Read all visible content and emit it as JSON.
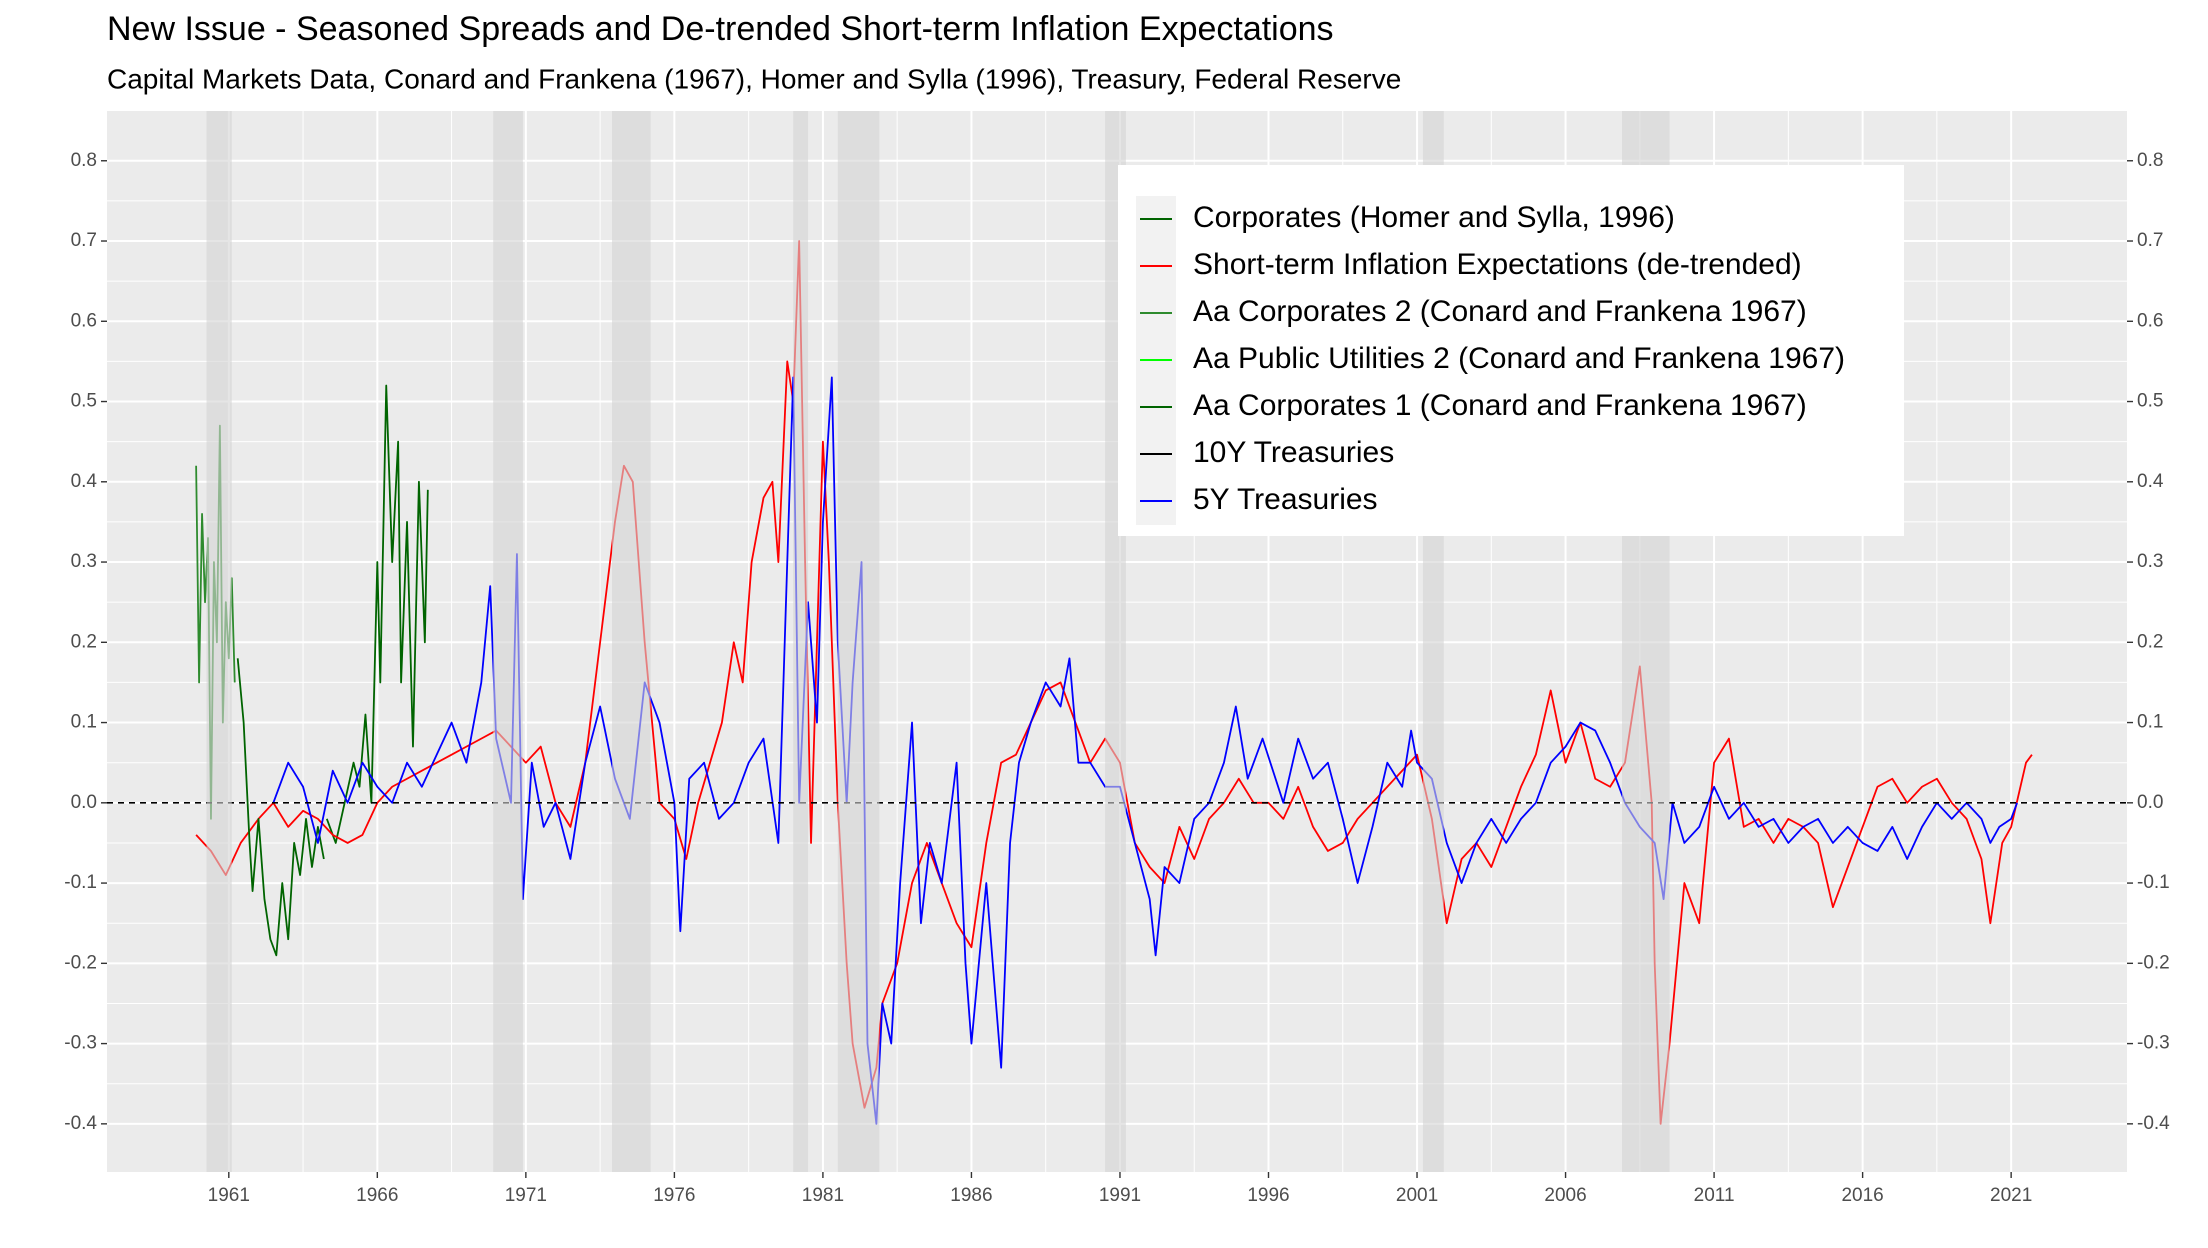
{
  "chart_data": {
    "type": "line",
    "title": "New Issue - Seasoned Spreads and De-trended Short-term Inflation Expectations",
    "subtitle": "Capital Markets Data, Conard and Frankena (1967), Homer and Sylla (1996), Treasury, Federal Reserve",
    "xlim": [
      1956.9,
      2024.9
    ],
    "xticks": [
      1961,
      1966,
      1971,
      1976,
      1981,
      1986,
      1991,
      1996,
      2001,
      2006,
      2011,
      2016,
      2021
    ],
    "ylim": [
      -0.46,
      0.862
    ],
    "yticks": [
      -0.4,
      -0.3,
      -0.2,
      -0.1,
      {
        "value": 0,
        "label": "0.0"
      },
      0.1,
      0.2,
      0.3,
      0.4,
      0.5,
      0.6,
      0.7,
      0.8
    ],
    "y2lim": [
      -0.46,
      0.862
    ],
    "y2ticks": [
      -0.4,
      -0.3,
      -0.2,
      -0.1,
      {
        "value": 0,
        "label": "0.0"
      },
      0.1,
      0.2,
      0.3,
      0.4,
      0.5,
      0.6,
      0.7,
      0.8
    ],
    "grid": true,
    "hline": 0,
    "shaded_periods": [
      [
        1960.25,
        1961.1
      ],
      [
        1969.9,
        1970.9
      ],
      [
        1973.9,
        1975.2
      ],
      [
        1980.0,
        1980.5
      ],
      [
        1981.5,
        1982.9
      ],
      [
        1990.5,
        1991.2
      ],
      [
        2001.2,
        2001.9
      ],
      [
        2007.9,
        2009.5
      ]
    ],
    "legend_position": "top-right",
    "series": [
      {
        "name": "Corporates (Homer and Sylla, 1996)",
        "color": "#006400",
        "x": [
          1964.3,
          1964.6,
          1964.9,
          1965.2,
          1965.4,
          1965.6,
          1965.8,
          1966.0,
          1966.1,
          1966.3,
          1966.5,
          1966.7,
          1966.8,
          1967.0,
          1967.2,
          1967.4,
          1967.6,
          1967.7
        ],
        "values": [
          -0.02,
          -0.05,
          0.0,
          0.05,
          0.02,
          0.11,
          0.0,
          0.3,
          0.15,
          0.52,
          0.3,
          0.45,
          0.15,
          0.35,
          0.07,
          0.4,
          0.2,
          0.39
        ]
      },
      {
        "name": "Short-term Inflation Expectations (de-trended)",
        "color": "#ff0000",
        "x": [
          1959.9,
          1960.4,
          1960.9,
          1961.4,
          1962.0,
          1962.5,
          1963.0,
          1963.5,
          1964.0,
          1964.5,
          1965.0,
          1965.5,
          1966.0,
          1966.5,
          1967.0,
          1967.5,
          1968.0,
          1968.5,
          1969.0,
          1969.5,
          1970.0,
          1970.5,
          1971.0,
          1971.5,
          1972.0,
          1972.5,
          1973.0,
          1973.5,
          1974.0,
          1974.3,
          1974.6,
          1975.0,
          1975.5,
          1976.0,
          1976.4,
          1976.8,
          1977.2,
          1977.6,
          1978.0,
          1978.3,
          1978.6,
          1979.0,
          1979.3,
          1979.5,
          1979.8,
          1980.0,
          1980.2,
          1980.4,
          1980.6,
          1980.8,
          1981.0,
          1981.2,
          1981.5,
          1981.8,
          1982.0,
          1982.4,
          1982.8,
          1983.0,
          1983.5,
          1984.0,
          1984.5,
          1985.0,
          1985.5,
          1986.0,
          1986.5,
          1987.0,
          1987.5,
          1988.0,
          1988.5,
          1989.0,
          1989.5,
          1990.0,
          1990.5,
          1991.0,
          1991.5,
          1992.0,
          1992.5,
          1993.0,
          1993.5,
          1994.0,
          1994.5,
          1995.0,
          1995.5,
          1996.0,
          1996.5,
          1997.0,
          1997.5,
          1998.0,
          1998.5,
          1999.0,
          1999.5,
          2000.0,
          2000.5,
          2001.0,
          2001.5,
          2002.0,
          2002.5,
          2003.0,
          2003.5,
          2004.0,
          2004.5,
          2005.0,
          2005.5,
          2006.0,
          2006.5,
          2007.0,
          2007.5,
          2008.0,
          2008.5,
          2008.9,
          2009.0,
          2009.2,
          2009.5,
          2010.0,
          2010.5,
          2011.0,
          2011.5,
          2012.0,
          2012.5,
          2013.0,
          2013.5,
          2014.0,
          2014.5,
          2015.0,
          2015.5,
          2016.0,
          2016.5,
          2017.0,
          2017.5,
          2018.0,
          2018.5,
          2019.0,
          2019.5,
          2020.0,
          2020.3,
          2020.7,
          2021.0,
          2021.5,
          2021.7
        ],
        "values": [
          -0.04,
          -0.06,
          -0.09,
          -0.05,
          -0.02,
          0.0,
          -0.03,
          -0.01,
          -0.02,
          -0.04,
          -0.05,
          -0.04,
          0.0,
          0.02,
          0.03,
          0.04,
          0.05,
          0.06,
          0.07,
          0.08,
          0.09,
          0.07,
          0.05,
          0.07,
          0.0,
          -0.03,
          0.05,
          0.2,
          0.35,
          0.42,
          0.4,
          0.2,
          0.0,
          -0.02,
          -0.07,
          0.0,
          0.05,
          0.1,
          0.2,
          0.15,
          0.3,
          0.38,
          0.4,
          0.3,
          0.55,
          0.5,
          0.7,
          0.3,
          -0.05,
          0.2,
          0.45,
          0.3,
          0.0,
          -0.2,
          -0.3,
          -0.38,
          -0.33,
          -0.25,
          -0.2,
          -0.1,
          -0.05,
          -0.1,
          -0.15,
          -0.18,
          -0.05,
          0.05,
          0.06,
          0.1,
          0.14,
          0.15,
          0.1,
          0.05,
          0.08,
          0.05,
          -0.05,
          -0.08,
          -0.1,
          -0.03,
          -0.07,
          -0.02,
          0.0,
          0.03,
          0.0,
          0.0,
          -0.02,
          0.02,
          -0.03,
          -0.06,
          -0.05,
          -0.02,
          0.0,
          0.02,
          0.04,
          0.06,
          -0.02,
          -0.15,
          -0.07,
          -0.05,
          -0.08,
          -0.03,
          0.02,
          0.06,
          0.14,
          0.05,
          0.1,
          0.03,
          0.02,
          0.05,
          0.17,
          0.0,
          -0.2,
          -0.4,
          -0.3,
          -0.1,
          -0.15,
          0.05,
          0.08,
          -0.03,
          -0.02,
          -0.05,
          -0.02,
          -0.03,
          -0.05,
          -0.13,
          -0.08,
          -0.03,
          0.02,
          0.03,
          0.0,
          0.02,
          0.03,
          0.0,
          -0.02,
          -0.07,
          -0.15,
          -0.05,
          -0.03,
          0.05,
          0.06
        ]
      },
      {
        "name": "Aa Corporates 2 (Conard and Frankena 1967)",
        "color": "#2e8b2e",
        "x": [
          1959.9,
          1960.0,
          1960.1,
          1960.2,
          1960.3,
          1960.4,
          1960.5,
          1960.6,
          1960.7,
          1960.8,
          1960.9,
          1961.0,
          1961.1,
          1961.2
        ],
        "values": [
          0.42,
          0.15,
          0.36,
          0.25,
          0.33,
          -0.02,
          0.3,
          0.2,
          0.47,
          0.1,
          0.25,
          0.18,
          0.28,
          0.15
        ]
      },
      {
        "name": "Aa Public Utilities 2 (Conard and Frankena 1967)",
        "color": "#00ff00",
        "x": [],
        "values": []
      },
      {
        "name": "Aa Corporates 1 (Conard and Frankena 1967)",
        "color": "#006400",
        "x": [
          1961.3,
          1961.5,
          1961.7,
          1961.8,
          1962.0,
          1962.2,
          1962.4,
          1962.6,
          1962.8,
          1963.0,
          1963.2,
          1963.4,
          1963.6,
          1963.8,
          1964.0,
          1964.2
        ],
        "values": [
          0.18,
          0.1,
          -0.05,
          -0.11,
          -0.02,
          -0.12,
          -0.17,
          -0.19,
          -0.1,
          -0.17,
          -0.05,
          -0.09,
          -0.02,
          -0.08,
          -0.03,
          -0.07
        ]
      },
      {
        "name": "10Y Treasuries",
        "color": "#000000",
        "x": [],
        "values": []
      },
      {
        "name": "5Y Treasuries",
        "color": "#0000ff",
        "x": [
          1962.5,
          1963.0,
          1963.5,
          1964.0,
          1964.5,
          1965.0,
          1965.5,
          1966.0,
          1966.5,
          1967.0,
          1967.5,
          1968.0,
          1968.5,
          1969.0,
          1969.5,
          1969.8,
          1970.0,
          1970.5,
          1970.7,
          1970.9,
          1971.2,
          1971.6,
          1972.0,
          1972.5,
          1973.0,
          1973.5,
          1974.0,
          1974.5,
          1975.0,
          1975.5,
          1976.0,
          1976.2,
          1976.5,
          1977.0,
          1977.5,
          1978.0,
          1978.5,
          1979.0,
          1979.5,
          1979.8,
          1980.0,
          1980.2,
          1980.5,
          1980.8,
          1981.0,
          1981.3,
          1981.5,
          1981.8,
          1982.0,
          1982.3,
          1982.5,
          1982.8,
          1983.0,
          1983.3,
          1983.6,
          1984.0,
          1984.3,
          1984.6,
          1985.0,
          1985.5,
          1985.8,
          1986.0,
          1986.5,
          1987.0,
          1987.3,
          1987.6,
          1988.0,
          1988.5,
          1989.0,
          1989.3,
          1989.6,
          1990.0,
          1990.5,
          1991.0,
          1991.5,
          1992.0,
          1992.2,
          1992.5,
          1993.0,
          1993.5,
          1994.0,
          1994.5,
          1994.9,
          1995.3,
          1995.8,
          1996.5,
          1997.0,
          1997.5,
          1998.0,
          1998.5,
          1999.0,
          1999.5,
          2000.0,
          2000.5,
          2000.8,
          2001.0,
          2001.5,
          2002.0,
          2002.5,
          2003.0,
          2003.5,
          2004.0,
          2004.5,
          2005.0,
          2005.5,
          2006.0,
          2006.5,
          2007.0,
          2007.5,
          2008.0,
          2008.5,
          2009.0,
          2009.3,
          2009.6,
          2010.0,
          2010.5,
          2011.0,
          2011.5,
          2012.0,
          2012.5,
          2013.0,
          2013.5,
          2014.0,
          2014.5,
          2015.0,
          2015.5,
          2016.0,
          2016.5,
          2017.0,
          2017.5,
          2018.0,
          2018.5,
          2019.0,
          2019.5,
          2020.0,
          2020.3,
          2020.6,
          2021.0,
          2021.2
        ],
        "values": [
          0.0,
          0.05,
          0.02,
          -0.05,
          0.04,
          0.0,
          0.05,
          0.02,
          0.0,
          0.05,
          0.02,
          0.06,
          0.1,
          0.05,
          0.15,
          0.27,
          0.08,
          0.0,
          0.31,
          -0.12,
          0.05,
          -0.03,
          0.0,
          -0.07,
          0.05,
          0.12,
          0.03,
          -0.02,
          0.15,
          0.1,
          0.0,
          -0.16,
          0.03,
          0.05,
          -0.02,
          0.0,
          0.05,
          0.08,
          -0.05,
          0.3,
          0.53,
          0.0,
          0.25,
          0.1,
          0.35,
          0.53,
          0.2,
          0.0,
          0.15,
          0.3,
          -0.3,
          -0.4,
          -0.25,
          -0.3,
          -0.1,
          0.1,
          -0.15,
          -0.05,
          -0.1,
          0.05,
          -0.2,
          -0.3,
          -0.1,
          -0.33,
          -0.05,
          0.05,
          0.1,
          0.15,
          0.12,
          0.18,
          0.05,
          0.05,
          0.02,
          0.02,
          -0.05,
          -0.12,
          -0.19,
          -0.08,
          -0.1,
          -0.02,
          0.0,
          0.05,
          0.12,
          0.03,
          0.08,
          0.0,
          0.08,
          0.03,
          0.05,
          -0.02,
          -0.1,
          -0.03,
          0.05,
          0.02,
          0.09,
          0.05,
          0.03,
          -0.05,
          -0.1,
          -0.05,
          -0.02,
          -0.05,
          -0.02,
          0.0,
          0.05,
          0.07,
          0.1,
          0.09,
          0.05,
          0.0,
          -0.03,
          -0.05,
          -0.12,
          0.0,
          -0.05,
          -0.03,
          0.02,
          -0.02,
          0.0,
          -0.03,
          -0.02,
          -0.05,
          -0.03,
          -0.02,
          -0.05,
          -0.03,
          -0.05,
          -0.06,
          -0.03,
          -0.07,
          -0.03,
          0.0,
          -0.02,
          0.0,
          -0.02,
          -0.05,
          -0.03,
          -0.02,
          0.0
        ]
      }
    ]
  }
}
